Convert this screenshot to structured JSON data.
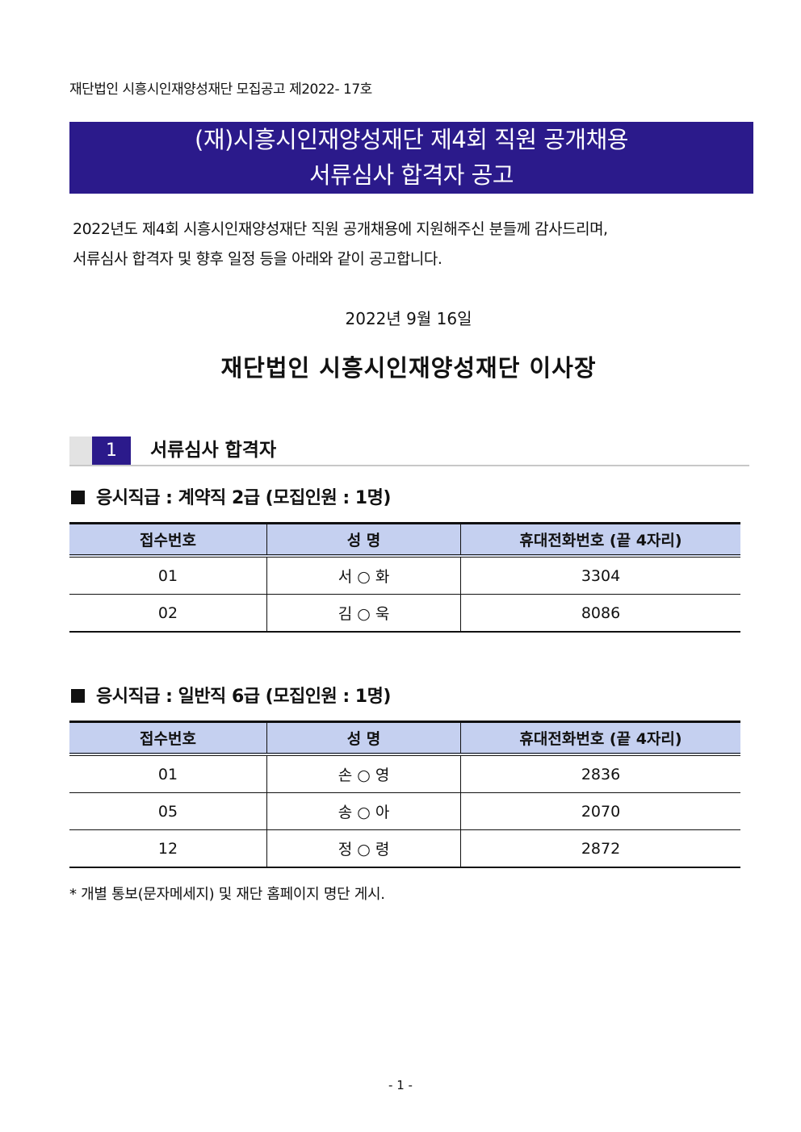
{
  "header": {
    "doc_number": "재단법인 시흥시인재양성재단 모집공고 제2022- 17호"
  },
  "banner": {
    "line1": "(재)시흥시인재양성재단 제4회 직원 공개채용",
    "line2": "서류심사 합격자 공고",
    "color": "#2b1a8b"
  },
  "intro": {
    "line1": "2022년도 제4회 시흥시인재양성재단 직원 공개채용에 지원해주신 분들께 감사드리며,",
    "line2": "서류심사 합격자 및 향후 일정 등을 아래와 같이 공고합니다."
  },
  "date": "2022년 9월 16일",
  "signer": "재단법인 시흥시인재양성재단 이사장",
  "section": {
    "number": "1",
    "title": "서류심사 합격자"
  },
  "columns": [
    "접수번호",
    "성 명",
    "휴대전화번호 (끝 4자리)"
  ],
  "groups": [
    {
      "title": "응시직급 : 계약직 2급 (모집인원 : 1명)",
      "rows": [
        [
          "01",
          "서 ○ 화",
          "3304"
        ],
        [
          "02",
          "김 ○ 욱",
          "8086"
        ]
      ]
    },
    {
      "title": "응시직급 : 일반직 6급 (모집인원 : 1명)",
      "rows": [
        [
          "01",
          "손 ○ 영",
          "2836"
        ],
        [
          "05",
          "송 ○ 아",
          "2070"
        ],
        [
          "12",
          "정 ○ 령",
          "2872"
        ]
      ]
    }
  ],
  "note": "* 개별 통보(문자메세지) 및 재단 홈페이지 명단 게시.",
  "page_number": "- 1 -"
}
